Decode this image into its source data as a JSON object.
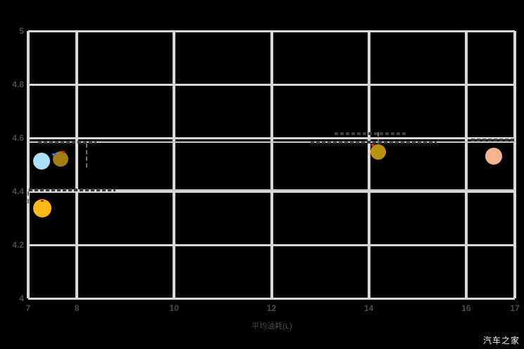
{
  "watermark": "汽车之家",
  "colors": {
    "background": "#000000",
    "grid": "#d8d8d8",
    "axis_text": "#4c4c4c",
    "reference_line": "#c9c9c9",
    "annotation_dash": "#3c3c3c",
    "leader_dash": "#6f6f6f",
    "watermark_text": "#f5f5f5",
    "marker_red": "#c6281c",
    "marker_blue": "#3b82d0"
  },
  "chart_data": {
    "type": "scatter",
    "title": "",
    "xlabel": "平均油耗(L)",
    "ylabel": "",
    "xlim": [
      7,
      17
    ],
    "ylim": [
      4,
      5
    ],
    "grid": true,
    "legend": "none",
    "x_ticks": [
      "7",
      "8",
      "10",
      "12",
      "14",
      "16",
      "17"
    ],
    "x_tick_values": [
      7,
      8,
      10,
      12,
      14,
      16,
      17
    ],
    "y_ticks": [
      "5",
      "4.8",
      "4.6",
      "4.4",
      "4.2",
      "4"
    ],
    "y_tick_values": [
      5,
      4.8,
      4.6,
      4.4,
      4.2,
      4
    ],
    "points": [
      {
        "name": "bubble-lightblue",
        "x": 7.28,
        "y": 4.513,
        "r": 12,
        "color": "#a9e1fa"
      },
      {
        "name": "bubble-darkgold",
        "x": 7.67,
        "y": 4.521,
        "r": 11,
        "color": "#a57e11"
      },
      {
        "name": "bubble-gold",
        "x": 7.29,
        "y": 4.337,
        "r": 13,
        "color": "#fcb813"
      },
      {
        "name": "bubble-olive",
        "x": 14.19,
        "y": 4.547,
        "r": 11,
        "color": "#b9920d"
      },
      {
        "name": "bubble-peach",
        "x": 16.57,
        "y": 4.532,
        "r": 12,
        "color": "#f4b58e"
      }
    ],
    "reference_lines": [
      {
        "y": 4.585
      },
      {
        "y": 4.405
      }
    ],
    "annotation_dashes": [
      {
        "y": 4.585,
        "x1": 7.2,
        "x2": 8.4,
        "text": ""
      },
      {
        "y": 4.585,
        "x1": 12.8,
        "x2": 15.4,
        "text": ""
      },
      {
        "y": 4.615,
        "x1": 13.3,
        "x2": 14.8,
        "text": ""
      },
      {
        "y": 4.593,
        "x1": 16.1,
        "x2": 17.0,
        "text": ""
      },
      {
        "y": 4.405,
        "x1": 7.02,
        "x2": 8.8,
        "text": ""
      }
    ],
    "leader_lines": [
      {
        "x": 8.2,
        "y1": 4.58,
        "y2": 4.49
      },
      {
        "x": 14.19,
        "y1": 4.622,
        "y2": 4.578
      },
      {
        "x": 7.0,
        "y1": 4.4,
        "y2": 4.355
      }
    ],
    "micro_markers": [
      {
        "x": 7.49,
        "y": 4.542,
        "w": 7,
        "h": 3,
        "color": "#3b82d0",
        "name": "blue-label-mark"
      },
      {
        "x": 7.69,
        "y": 4.553,
        "w": 4,
        "h": 4,
        "color": "#c6281c",
        "name": "red-label-mark"
      },
      {
        "x": 14.05,
        "y": 4.579,
        "w": 4,
        "h": 4,
        "color": "#c6281c",
        "name": "red-label-mark"
      },
      {
        "x": 7.26,
        "y": 4.368,
        "w": 4,
        "h": 3,
        "color": "#c6281c",
        "name": "red-label-mark"
      }
    ]
  }
}
